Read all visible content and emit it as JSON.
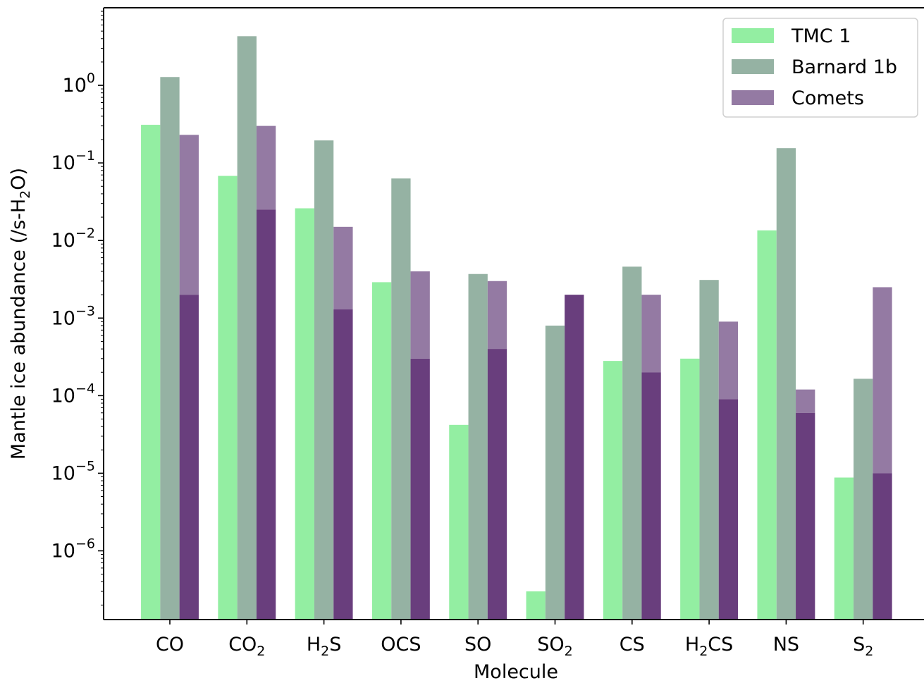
{
  "chart_data": {
    "type": "bar",
    "yscale": "log",
    "xlabel": "Molecule",
    "ylabel": {
      "main": "Mantle ice abundance (/s-H",
      "sub": "2",
      "end": "O)"
    },
    "ylim": [
      1.3e-07,
      10
    ],
    "yticks": [
      {
        "base": "10",
        "exp": "0",
        "value": 1
      },
      {
        "base": "10",
        "exp": "−1",
        "value": 0.1
      },
      {
        "base": "10",
        "exp": "−2",
        "value": 0.01
      },
      {
        "base": "10",
        "exp": "−3",
        "value": 0.001
      },
      {
        "base": "10",
        "exp": "−4",
        "value": 0.0001
      },
      {
        "base": "10",
        "exp": "−5",
        "value": 1e-05
      },
      {
        "base": "10",
        "exp": "−6",
        "value": 1e-06
      }
    ],
    "categories": [
      {
        "main": "CO",
        "sub": "",
        "end": ""
      },
      {
        "main": "CO",
        "sub": "2",
        "end": ""
      },
      {
        "main": "H",
        "sub": "2",
        "end": "S"
      },
      {
        "main": "OCS",
        "sub": "",
        "end": ""
      },
      {
        "main": "SO",
        "sub": "",
        "end": ""
      },
      {
        "main": "SO",
        "sub": "2",
        "end": ""
      },
      {
        "main": "CS",
        "sub": "",
        "end": ""
      },
      {
        "main": "H",
        "sub": "2",
        "end": "CS"
      },
      {
        "main": "NS",
        "sub": "",
        "end": ""
      },
      {
        "main": "S",
        "sub": "2",
        "end": ""
      }
    ],
    "series": [
      {
        "name": "TMC 1",
        "color": "#93eea2",
        "values": [
          0.31,
          0.068,
          0.026,
          0.0029,
          4.2e-05,
          3e-07,
          0.00028,
          0.0003,
          0.0135,
          8.8e-06
        ]
      },
      {
        "name": "Barnard 1b",
        "color": "#95b2a3",
        "values": [
          1.28,
          4.3,
          0.195,
          0.063,
          0.0037,
          0.0008,
          0.0046,
          0.0031,
          0.155,
          0.000165
        ]
      },
      {
        "name": "Comets",
        "color": "#947aa3",
        "range_color": "#947aa3",
        "low_color": "#693e7d",
        "high": [
          0.23,
          0.3,
          0.015,
          0.004,
          0.003,
          0.002,
          0.002,
          0.0009,
          0.00012,
          0.0025
        ],
        "low": [
          0.002,
          0.025,
          0.0013,
          0.0003,
          0.0004,
          0.002,
          0.0002,
          9e-05,
          6e-05,
          1e-05
        ]
      }
    ],
    "legend": {
      "position": "top-right",
      "entries": [
        "TMC 1",
        "Barnard 1b",
        "Comets"
      ]
    },
    "grid": false
  }
}
